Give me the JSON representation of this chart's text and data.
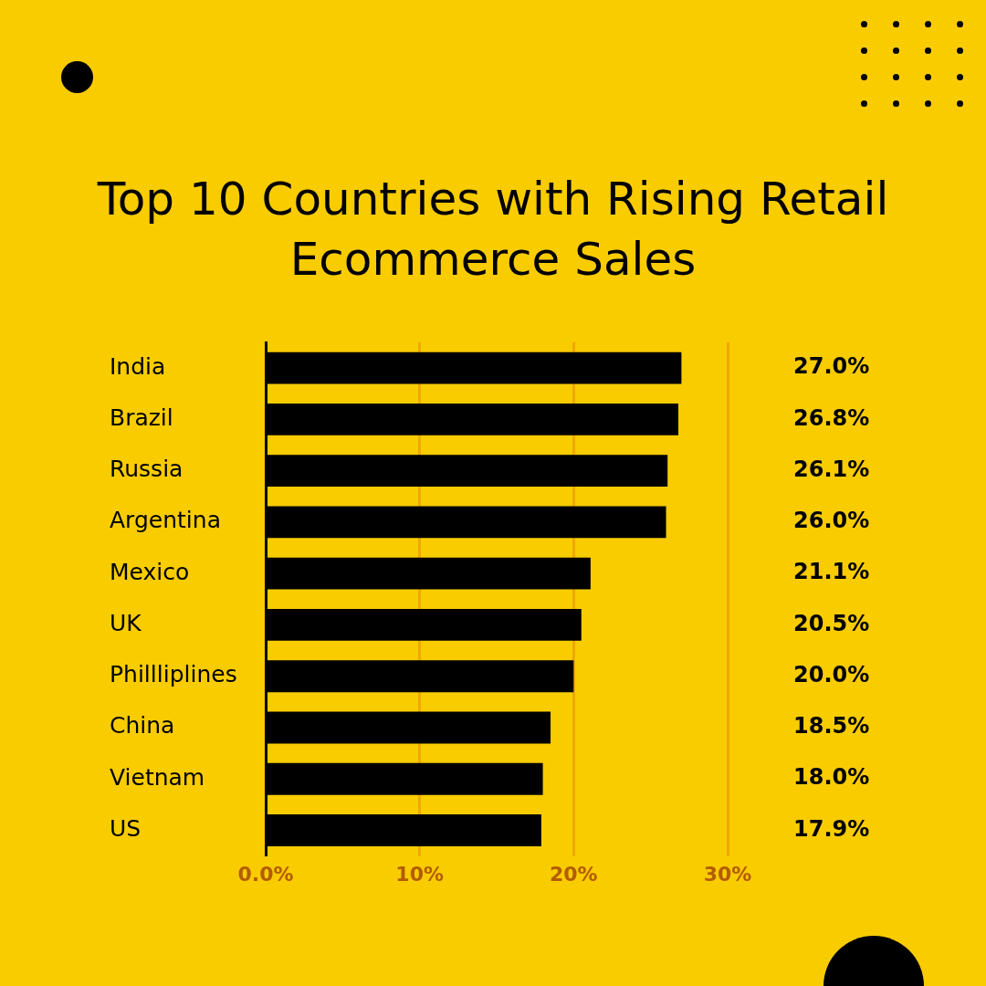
{
  "chart_data": {
    "type": "bar",
    "orientation": "horizontal",
    "title": "Top 10 Countries with Rising Retail Ecommerce Sales",
    "categories": [
      "India",
      "Brazil",
      "Russia",
      "Argentina",
      "Mexico",
      "UK",
      "Phillliplines",
      "China",
      "Vietnam",
      "US"
    ],
    "values": [
      27.0,
      26.8,
      26.1,
      26.0,
      21.1,
      20.5,
      20.0,
      18.5,
      18.0,
      17.9
    ],
    "value_labels": [
      "27.0%",
      "26.8%",
      "26.1%",
      "26.0%",
      "21.1%",
      "20.5%",
      "20.0%",
      "18.5%",
      "18.0%",
      "17.9%"
    ],
    "color": "#000000",
    "xlim": [
      0,
      30
    ],
    "xticks": [
      {
        "value": 0,
        "label": "0.0%"
      },
      {
        "value": 10,
        "label": "10%"
      },
      {
        "value": 20,
        "label": "20%"
      },
      {
        "value": 30,
        "label": "30%"
      }
    ],
    "grid": "x"
  }
}
